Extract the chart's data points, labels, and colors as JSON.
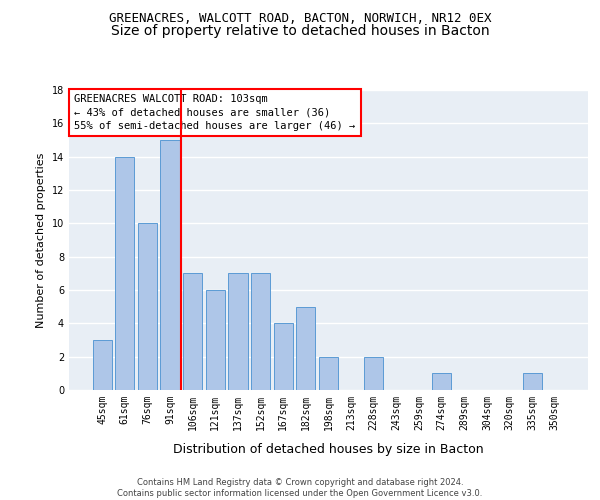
{
  "title1": "GREENACRES, WALCOTT ROAD, BACTON, NORWICH, NR12 0EX",
  "title2": "Size of property relative to detached houses in Bacton",
  "xlabel": "Distribution of detached houses by size in Bacton",
  "ylabel": "Number of detached properties",
  "bin_labels": [
    "45sqm",
    "61sqm",
    "76sqm",
    "91sqm",
    "106sqm",
    "121sqm",
    "137sqm",
    "152sqm",
    "167sqm",
    "182sqm",
    "198sqm",
    "213sqm",
    "228sqm",
    "243sqm",
    "259sqm",
    "274sqm",
    "289sqm",
    "304sqm",
    "320sqm",
    "335sqm",
    "350sqm"
  ],
  "bar_values": [
    3,
    14,
    10,
    15,
    7,
    6,
    7,
    7,
    4,
    5,
    2,
    0,
    2,
    0,
    0,
    1,
    0,
    0,
    0,
    1,
    0
  ],
  "bar_color": "#aec6e8",
  "bar_edge_color": "#5b9bd5",
  "red_line_index": 4,
  "annotation_text": "GREENACRES WALCOTT ROAD: 103sqm\n← 43% of detached houses are smaller (36)\n55% of semi-detached houses are larger (46) →",
  "ylim": [
    0,
    18
  ],
  "yticks": [
    0,
    2,
    4,
    6,
    8,
    10,
    12,
    14,
    16,
    18
  ],
  "footer": "Contains HM Land Registry data © Crown copyright and database right 2024.\nContains public sector information licensed under the Open Government Licence v3.0.",
  "background_color": "#e8eef5",
  "grid_color": "#ffffff",
  "title1_fontsize": 9,
  "title2_fontsize": 10,
  "xlabel_fontsize": 9,
  "ylabel_fontsize": 8,
  "annotation_fontsize": 7.5,
  "tick_fontsize": 7
}
